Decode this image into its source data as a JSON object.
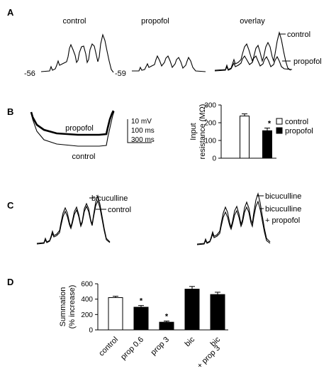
{
  "panels": {
    "A": {
      "letter": "A",
      "titles": [
        "control",
        "propofol",
        "overlay"
      ],
      "baselines": [
        "-56",
        "-59"
      ],
      "legend": [
        "control",
        "propofol"
      ]
    },
    "B": {
      "letter": "B",
      "trace_labels": [
        "propofol",
        "control"
      ],
      "scalebar": [
        "10 mV",
        "100 ms",
        "300 ms"
      ],
      "legend": [
        "control",
        "propofol"
      ]
    },
    "C": {
      "letter": "C",
      "labels_left": [
        "bicuculline",
        "control"
      ],
      "labels_right": [
        "bicuculline",
        "bicuculline",
        "+ propofol"
      ]
    },
    "D": {
      "letter": "D"
    }
  },
  "chart_data": [
    {
      "panel": "B",
      "type": "bar",
      "categories": [
        "control",
        "propofol"
      ],
      "values": [
        238,
        155
      ],
      "errors": [
        12,
        15
      ],
      "significance": [
        "",
        "*"
      ],
      "fills": [
        "#ffffff",
        "#000000"
      ],
      "ylabel": "Input resistance (MΩ)",
      "ylabel_lines": [
        "Input",
        "resistance (MΩ)"
      ],
      "ylim": [
        0,
        300
      ],
      "yticks": [
        0,
        100,
        200,
        300
      ],
      "legend": "right"
    },
    {
      "panel": "D",
      "type": "bar",
      "categories": [
        "control",
        "prop 0.6",
        "prop 3",
        "bic",
        "bic + prop 3"
      ],
      "category_lines": [
        [
          "control"
        ],
        [
          "prop 0.6"
        ],
        [
          "prop 3"
        ],
        [
          "bic"
        ],
        [
          "bic",
          "+ prop 3"
        ]
      ],
      "values": [
        420,
        295,
        100,
        530,
        460
      ],
      "errors": [
        18,
        22,
        15,
        35,
        30
      ],
      "significance": [
        "",
        "*",
        "*",
        "",
        ""
      ],
      "fills": [
        "#ffffff",
        "#000000",
        "#000000",
        "#000000",
        "#000000"
      ],
      "ylabel": "Summation (% increase)",
      "ylabel_lines": [
        "Summation",
        "(% increase)"
      ],
      "ylim": [
        0,
        600
      ],
      "yticks": [
        0,
        200,
        400,
        600
      ]
    }
  ]
}
